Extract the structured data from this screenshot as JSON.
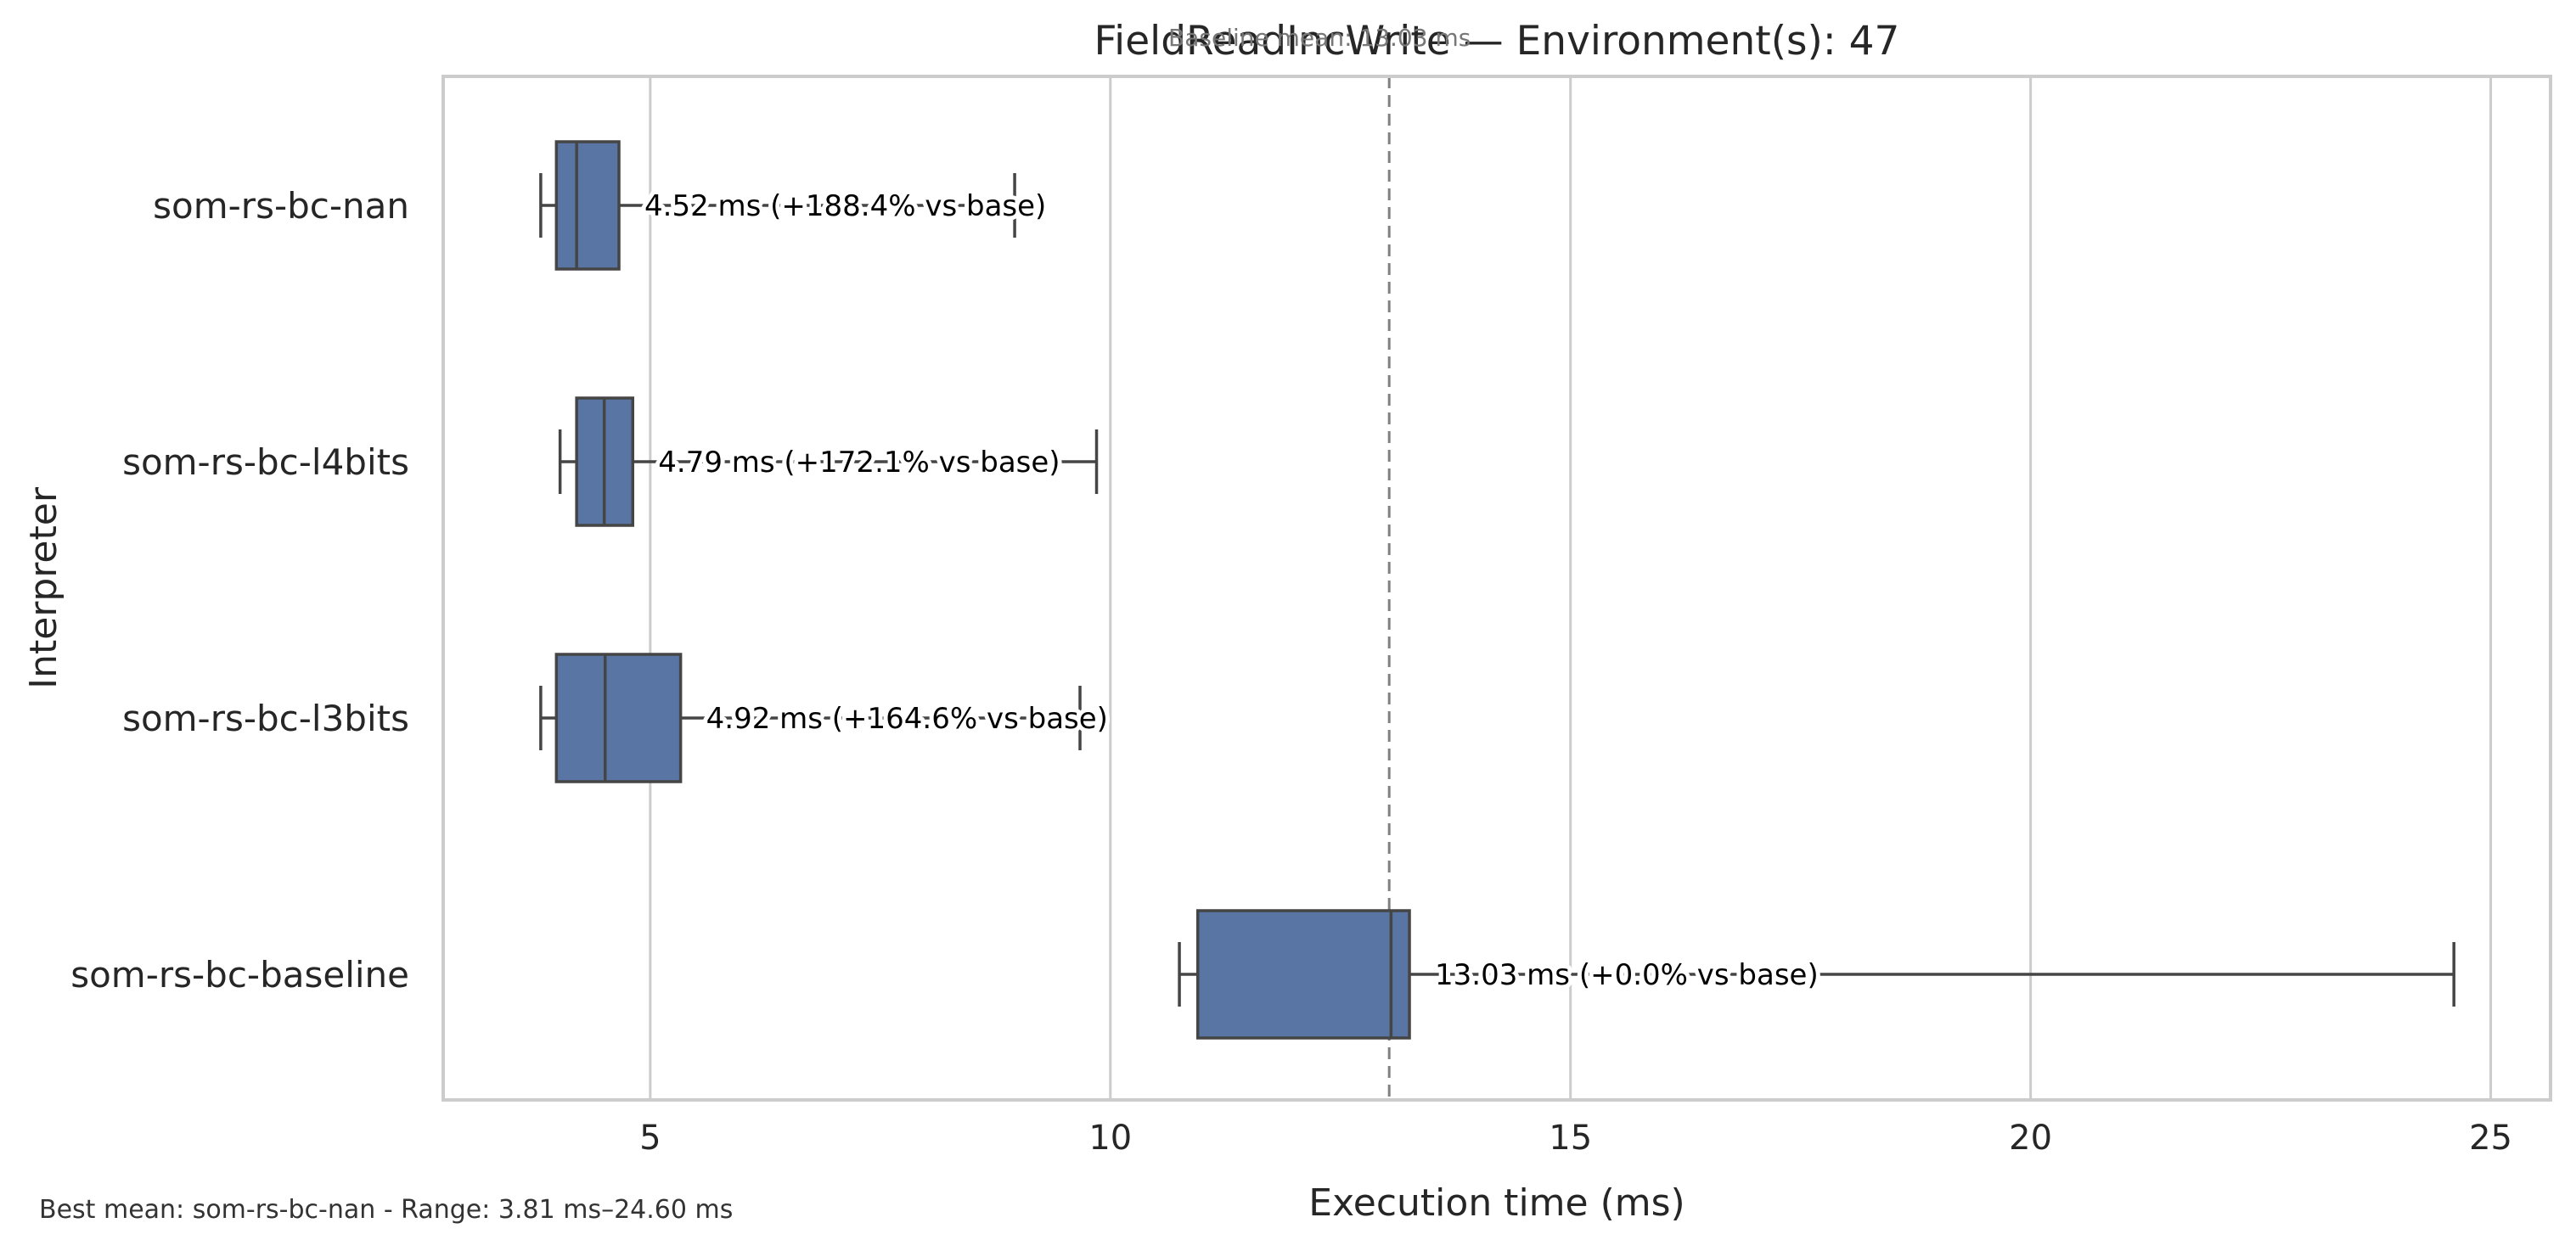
{
  "chart_data": {
    "type": "boxplot",
    "orientation": "horizontal",
    "title": "FieldReadIncWrite — Environment(s): 47",
    "xlabel": "Execution time (ms)",
    "ylabel": "Interpreter",
    "xlim": [
      2.75,
      25.65
    ],
    "xticks": [
      5,
      10,
      15,
      20,
      25
    ],
    "grid": "x-major",
    "box_color": "#5875a4",
    "edge_color": "#454545",
    "reference_line": {
      "value": 13.03,
      "label": "Baseline mean: 13.03 ms",
      "style": "dashed",
      "color": "#808080"
    },
    "categories": [
      "som-rs-bc-nan",
      "som-rs-bc-l4bits",
      "som-rs-bc-l3bits",
      "som-rs-bc-baseline"
    ],
    "boxes": [
      {
        "name": "som-rs-bc-nan",
        "whisker_low": 3.81,
        "q1": 3.98,
        "median": 4.2,
        "q3": 4.66,
        "whisker_high": 8.96,
        "label": "4.52 ms  (+188.4% vs base)"
      },
      {
        "name": "som-rs-bc-l4bits",
        "whisker_low": 4.02,
        "q1": 4.2,
        "median": 4.5,
        "q3": 4.81,
        "whisker_high": 9.85,
        "label": "4.79 ms  (+172.1% vs base)"
      },
      {
        "name": "som-rs-bc-l3bits",
        "whisker_low": 3.81,
        "q1": 3.98,
        "median": 4.51,
        "q3": 5.33,
        "whisker_high": 9.67,
        "label": "4.92 ms  (+164.6% vs base)"
      },
      {
        "name": "som-rs-bc-baseline",
        "whisker_low": 10.75,
        "q1": 10.95,
        "median": 13.05,
        "q3": 13.25,
        "whisker_high": 24.6,
        "label": "13.03 ms  (+0.0% vs base)"
      }
    ]
  },
  "footer": "Best mean: som-rs-bc-nan - Range: 3.81 ms–24.60 ms"
}
